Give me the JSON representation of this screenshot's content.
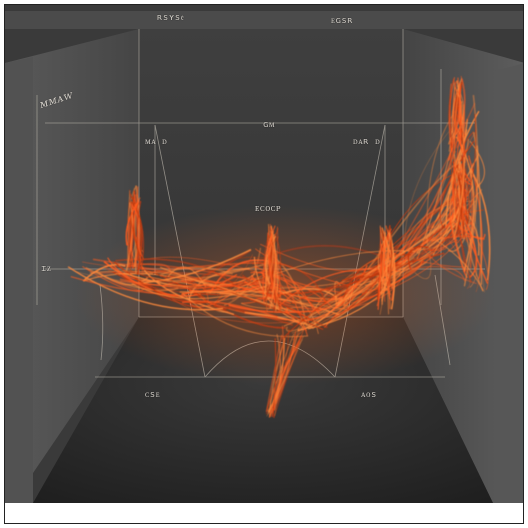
{
  "labels": {
    "top_left": "ʀsʏs𝔢",
    "top_right": "ᴇɢsʀ",
    "upper_mid_left": "ᴍᴀ ᴅ",
    "upper_mid_center": "ɢᴍ",
    "upper_mid_right": "ᴅᴀʀ ᴅ",
    "center": "ᴇᴄᴏᴄᴘ",
    "left_side": "ɪᴢ",
    "bottom_left": "ᴄsᴇ",
    "bottom_right": "ᴀᴏs",
    "scrawl": "ᴍᴍᴀᴡ"
  },
  "colors": {
    "background": "#ffffff",
    "box_back": "#3b3b3b",
    "box_side": "#4a4a4a",
    "floor": "#2c2c2c",
    "lines": "#b9b4aa",
    "fibers_main": "#ff5a1f",
    "fibers_light": "#ff8a3c",
    "fibers_dark": "#c43a10"
  }
}
